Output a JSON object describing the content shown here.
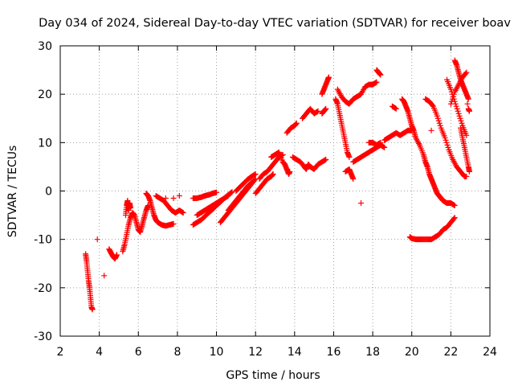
{
  "chart_data": {
    "type": "scatter",
    "title": "Day 034 of 2024, Sidereal Day-to-day VTEC variation (SDTVAR) for receiver boav",
    "xlabel": "GPS time / hours",
    "ylabel": "SDTVAR / TECUs",
    "xlim": [
      2,
      24
    ],
    "ylim": [
      -30,
      30
    ],
    "xticks": [
      2,
      4,
      6,
      8,
      10,
      12,
      14,
      16,
      18,
      20,
      22,
      24
    ],
    "yticks": [
      -30,
      -20,
      -10,
      0,
      10,
      20,
      30
    ],
    "grid": true,
    "marker": "+",
    "color": "#ff0000",
    "series": [
      {
        "name": "SDTVAR",
        "points": [
          [
            3.3,
            -13.0
          ],
          [
            3.35,
            -14.5
          ],
          [
            3.4,
            -16.5
          ],
          [
            3.45,
            -18.5
          ],
          [
            3.5,
            -20.0
          ],
          [
            3.55,
            -22.0
          ],
          [
            3.6,
            -24.0
          ],
          [
            3.65,
            -24.5
          ],
          [
            3.9,
            -10.0
          ],
          [
            4.25,
            -17.5
          ],
          [
            4.5,
            -12.0
          ],
          [
            4.6,
            -12.8
          ],
          [
            4.7,
            -13.5
          ],
          [
            4.8,
            -14.0
          ],
          [
            4.9,
            -13.2
          ],
          [
            5.2,
            -12.5
          ],
          [
            5.3,
            -11.0
          ],
          [
            5.4,
            -9.0
          ],
          [
            5.5,
            -7.0
          ],
          [
            5.6,
            -5.5
          ],
          [
            5.7,
            -4.5
          ],
          [
            5.8,
            -5.0
          ],
          [
            5.9,
            -6.5
          ],
          [
            6.0,
            -8.0
          ],
          [
            6.1,
            -8.5
          ],
          [
            6.2,
            -7.0
          ],
          [
            6.3,
            -5.5
          ],
          [
            6.4,
            -4.0
          ],
          [
            6.5,
            -3.0
          ],
          [
            5.35,
            -5.0
          ],
          [
            5.4,
            -3.0
          ],
          [
            5.45,
            -2.0
          ],
          [
            5.5,
            -4.0
          ],
          [
            5.55,
            -2.5
          ],
          [
            5.6,
            -3.5
          ],
          [
            6.4,
            -0.5
          ],
          [
            6.5,
            -1.0
          ],
          [
            6.6,
            -2.0
          ],
          [
            6.7,
            -3.5
          ],
          [
            6.8,
            -5.0
          ],
          [
            6.9,
            -6.0
          ],
          [
            7.0,
            -6.5
          ],
          [
            7.2,
            -7.0
          ],
          [
            7.4,
            -7.2
          ],
          [
            7.6,
            -7.0
          ],
          [
            7.8,
            -6.8
          ],
          [
            6.9,
            -1.0
          ],
          [
            7.1,
            -1.5
          ],
          [
            7.3,
            -2.0
          ],
          [
            7.5,
            -3.0
          ],
          [
            7.7,
            -4.0
          ],
          [
            7.9,
            -4.5
          ],
          [
            8.1,
            -4.0
          ],
          [
            8.3,
            -4.5
          ],
          [
            7.4,
            -1.5
          ],
          [
            7.8,
            -1.5
          ],
          [
            8.1,
            -1.0
          ],
          [
            8.8,
            -1.5
          ],
          [
            9.0,
            -1.5
          ],
          [
            9.2,
            -1.3
          ],
          [
            9.4,
            -1.0
          ],
          [
            9.6,
            -0.8
          ],
          [
            9.8,
            -0.5
          ],
          [
            10.0,
            -0.3
          ],
          [
            8.8,
            -7.0
          ],
          [
            9.0,
            -6.5
          ],
          [
            9.2,
            -6.0
          ],
          [
            9.4,
            -5.3
          ],
          [
            9.6,
            -4.5
          ],
          [
            9.8,
            -3.8
          ],
          [
            10.0,
            -3.0
          ],
          [
            10.2,
            -2.3
          ],
          [
            10.4,
            -1.5
          ],
          [
            10.6,
            -0.8
          ],
          [
            10.8,
            -0.2
          ],
          [
            9.0,
            -5.0
          ],
          [
            9.2,
            -4.5
          ],
          [
            9.4,
            -4.0
          ],
          [
            9.6,
            -3.5
          ],
          [
            9.8,
            -3.0
          ],
          [
            10.0,
            -2.5
          ],
          [
            10.2,
            -2.0
          ],
          [
            10.4,
            -1.5
          ],
          [
            10.6,
            -1.0
          ],
          [
            10.2,
            -6.5
          ],
          [
            10.4,
            -5.5
          ],
          [
            10.6,
            -4.5
          ],
          [
            10.8,
            -3.5
          ],
          [
            11.0,
            -2.5
          ],
          [
            11.2,
            -1.5
          ],
          [
            11.4,
            -0.5
          ],
          [
            11.6,
            0.5
          ],
          [
            11.8,
            1.5
          ],
          [
            12.0,
            2.5
          ],
          [
            10.6,
            -4.0
          ],
          [
            10.8,
            -3.0
          ],
          [
            11.0,
            -2.0
          ],
          [
            11.2,
            -1.0
          ],
          [
            11.4,
            0.0
          ],
          [
            11.6,
            1.0
          ],
          [
            11.8,
            1.8
          ],
          [
            11.0,
            0.0
          ],
          [
            11.2,
            0.8
          ],
          [
            11.4,
            1.6
          ],
          [
            11.6,
            2.4
          ],
          [
            11.8,
            3.0
          ],
          [
            12.0,
            3.5
          ],
          [
            12.0,
            -0.5
          ],
          [
            12.2,
            0.5
          ],
          [
            12.4,
            1.5
          ],
          [
            12.6,
            2.5
          ],
          [
            12.8,
            3.0
          ],
          [
            12.9,
            3.5
          ],
          [
            12.2,
            2.5
          ],
          [
            12.4,
            3.5
          ],
          [
            12.6,
            4.0
          ],
          [
            12.8,
            5.0
          ],
          [
            13.0,
            6.0
          ],
          [
            13.2,
            7.0
          ],
          [
            13.4,
            7.5
          ],
          [
            12.8,
            7.0
          ],
          [
            13.0,
            7.5
          ],
          [
            13.2,
            8.0
          ],
          [
            13.4,
            6.0
          ],
          [
            13.5,
            5.5
          ],
          [
            13.6,
            4.5
          ],
          [
            13.7,
            3.5
          ],
          [
            13.75,
            4.0
          ],
          [
            13.6,
            12.0
          ],
          [
            13.8,
            13.0
          ],
          [
            14.0,
            13.5
          ],
          [
            14.1,
            14.0
          ],
          [
            13.9,
            7.0
          ],
          [
            14.1,
            6.5
          ],
          [
            14.3,
            6.0
          ],
          [
            14.5,
            5.0
          ],
          [
            14.6,
            4.5
          ],
          [
            14.7,
            5.5
          ],
          [
            14.8,
            5.0
          ],
          [
            15.0,
            4.5
          ],
          [
            15.2,
            5.5
          ],
          [
            15.4,
            6.0
          ],
          [
            15.6,
            6.5
          ],
          [
            14.4,
            15.0
          ],
          [
            14.6,
            16.0
          ],
          [
            14.8,
            17.0
          ],
          [
            15.0,
            16.0
          ],
          [
            15.2,
            16.5
          ],
          [
            15.4,
            20.0
          ],
          [
            15.5,
            21.0
          ],
          [
            15.6,
            22.0
          ],
          [
            15.7,
            23.0
          ],
          [
            15.75,
            23.5
          ],
          [
            15.4,
            16.0
          ],
          [
            15.5,
            16.5
          ],
          [
            15.6,
            17.0
          ],
          [
            16.1,
            19.0
          ],
          [
            16.2,
            18.0
          ],
          [
            16.3,
            16.0
          ],
          [
            16.4,
            14.0
          ],
          [
            16.5,
            12.0
          ],
          [
            16.6,
            10.0
          ],
          [
            16.7,
            8.0
          ],
          [
            16.8,
            7.0
          ],
          [
            16.2,
            21.0
          ],
          [
            16.4,
            19.5
          ],
          [
            16.6,
            18.5
          ],
          [
            16.8,
            18.0
          ],
          [
            17.0,
            19.0
          ],
          [
            17.2,
            19.5
          ],
          [
            17.4,
            20.0
          ],
          [
            17.6,
            21.5
          ],
          [
            17.8,
            22.0
          ],
          [
            18.0,
            22.0
          ],
          [
            18.2,
            22.5
          ],
          [
            18.2,
            25.0
          ],
          [
            18.3,
            24.5
          ],
          [
            18.4,
            24.0
          ],
          [
            16.6,
            4.0
          ],
          [
            16.8,
            4.5
          ],
          [
            16.9,
            3.5
          ],
          [
            17.0,
            2.5
          ],
          [
            17.0,
            6.0
          ],
          [
            17.2,
            6.5
          ],
          [
            17.4,
            7.0
          ],
          [
            17.6,
            7.5
          ],
          [
            17.8,
            8.0
          ],
          [
            18.0,
            8.5
          ],
          [
            18.2,
            9.0
          ],
          [
            18.4,
            9.5
          ],
          [
            18.6,
            9.0
          ],
          [
            17.8,
            10.0
          ],
          [
            18.0,
            10.0
          ],
          [
            18.2,
            9.5
          ],
          [
            18.4,
            10.0
          ],
          [
            17.4,
            -2.5
          ],
          [
            18.6,
            10.5
          ],
          [
            18.8,
            11.0
          ],
          [
            19.0,
            11.5
          ],
          [
            19.2,
            12.0
          ],
          [
            19.4,
            11.5
          ],
          [
            19.6,
            12.0
          ],
          [
            19.8,
            12.5
          ],
          [
            20.0,
            12.5
          ],
          [
            19.0,
            17.5
          ],
          [
            19.2,
            17.0
          ],
          [
            19.5,
            19.0
          ],
          [
            19.6,
            18.5
          ],
          [
            19.7,
            17.5
          ],
          [
            19.8,
            16.5
          ],
          [
            19.9,
            15.0
          ],
          [
            20.0,
            13.5
          ],
          [
            20.1,
            12.5
          ],
          [
            20.2,
            11.0
          ],
          [
            20.4,
            9.5
          ],
          [
            20.6,
            7.5
          ],
          [
            20.7,
            6.0
          ],
          [
            20.8,
            5.0
          ],
          [
            20.9,
            3.5
          ],
          [
            21.0,
            2.5
          ],
          [
            21.1,
            1.5
          ],
          [
            21.2,
            0.5
          ],
          [
            21.3,
            -0.5
          ],
          [
            21.4,
            -1.0
          ],
          [
            21.5,
            -1.5
          ],
          [
            21.6,
            -2.0
          ],
          [
            21.8,
            -2.5
          ],
          [
            22.0,
            -2.5
          ],
          [
            22.2,
            -3.0
          ],
          [
            21.0,
            12.5
          ],
          [
            19.9,
            -9.5
          ],
          [
            20.0,
            -9.8
          ],
          [
            20.2,
            -10.0
          ],
          [
            20.4,
            -10.0
          ],
          [
            20.6,
            -10.0
          ],
          [
            20.8,
            -10.0
          ],
          [
            21.0,
            -10.0
          ],
          [
            21.2,
            -9.5
          ],
          [
            21.4,
            -9.0
          ],
          [
            21.6,
            -8.0
          ],
          [
            21.8,
            -7.5
          ],
          [
            22.0,
            -6.5
          ],
          [
            22.2,
            -5.5
          ],
          [
            20.7,
            19.0
          ],
          [
            20.9,
            18.5
          ],
          [
            21.1,
            17.5
          ],
          [
            21.3,
            15.5
          ],
          [
            21.5,
            13.0
          ],
          [
            21.7,
            11.0
          ],
          [
            21.9,
            8.5
          ],
          [
            22.1,
            6.5
          ],
          [
            22.3,
            5.0
          ],
          [
            22.5,
            4.0
          ],
          [
            22.7,
            3.0
          ],
          [
            22.8,
            3.0
          ],
          [
            21.8,
            23.0
          ],
          [
            22.0,
            21.0
          ],
          [
            22.2,
            18.5
          ],
          [
            22.4,
            16.0
          ],
          [
            22.6,
            13.5
          ],
          [
            22.8,
            11.5
          ],
          [
            22.2,
            27.0
          ],
          [
            22.3,
            26.0
          ],
          [
            22.4,
            24.5
          ],
          [
            22.5,
            23.0
          ],
          [
            22.6,
            22.0
          ],
          [
            22.7,
            21.0
          ],
          [
            22.8,
            20.0
          ],
          [
            22.9,
            19.0
          ],
          [
            22.0,
            18.0
          ],
          [
            22.2,
            20.5
          ],
          [
            22.4,
            22.0
          ],
          [
            22.6,
            23.5
          ],
          [
            22.8,
            24.5
          ],
          [
            22.5,
            13.0
          ],
          [
            22.6,
            11.0
          ],
          [
            22.7,
            9.0
          ],
          [
            22.8,
            7.0
          ],
          [
            22.9,
            5.0
          ],
          [
            22.95,
            4.0
          ],
          [
            22.9,
            17.0
          ],
          [
            22.95,
            16.5
          ],
          [
            22.85,
            18.0
          ]
        ]
      }
    ]
  }
}
